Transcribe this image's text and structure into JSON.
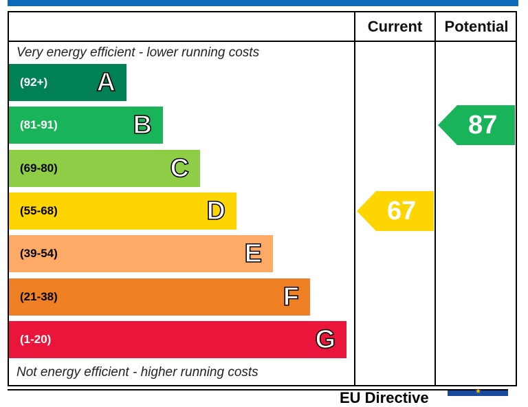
{
  "header": {
    "current_label": "Current",
    "potential_label": "Potential"
  },
  "notes": {
    "top": "Very energy efficient - lower running costs",
    "bottom": "Not energy efficient - higher running costs"
  },
  "chart_data": {
    "type": "bar",
    "categories": [
      "A",
      "B",
      "C",
      "D",
      "E",
      "F",
      "G"
    ],
    "ranges": [
      "(92+)",
      "(81-91)",
      "(69-80)",
      "(55-68)",
      "(39-54)",
      "(21-38)",
      "(1-20)"
    ],
    "colors": [
      "#008054",
      "#19b459",
      "#8dce46",
      "#ffd500",
      "#fcaa65",
      "#ef8023",
      "#e9153b"
    ],
    "range_text_colors": [
      "#ffffff",
      "#ffffff",
      "#000000",
      "#000000",
      "#000000",
      "#000000",
      "#ffffff"
    ],
    "current": {
      "value": 67,
      "band": "D",
      "color": "#ffd500"
    },
    "potential": {
      "value": 87,
      "band": "B",
      "color": "#19b459"
    }
  },
  "footer": {
    "text": "EU Directive",
    "logo_color": "#1a4a9c",
    "star_color": "#f2c500"
  }
}
